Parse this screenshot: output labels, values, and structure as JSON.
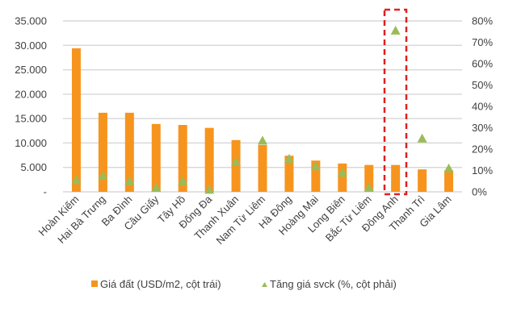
{
  "chart_data": {
    "type": "bar",
    "categories": [
      "Hoàn Kiếm",
      "Hai Bà Trưng",
      "Ba Đình",
      "Cầu Giấy",
      "Tây Hồ",
      "Đống Đa",
      "Thanh Xuân",
      "Nam Từ Liêm",
      "Hà Đông",
      "Hoàng Mai",
      "Long Biên",
      "Bắc Từ Liêm",
      "Đông Anh",
      "Thanh Trì",
      "Gia Lâm"
    ],
    "series": [
      {
        "name": "Giá đất (USD/m2, cột trái)",
        "type": "bar",
        "axis": "left",
        "color": "#F7941D",
        "values": [
          29400,
          16200,
          16200,
          13900,
          13700,
          13100,
          10600,
          9600,
          7400,
          6400,
          5800,
          5500,
          5500,
          4600,
          4400
        ]
      },
      {
        "name": "Tăng giá svck (%, cột phải)",
        "type": "scatter",
        "marker": "triangle",
        "axis": "right",
        "color": "#9BBB59",
        "values": [
          5.5,
          7.5,
          5,
          2,
          5,
          1,
          14,
          24,
          15.5,
          12,
          9,
          2,
          75.5,
          25,
          11
        ]
      }
    ],
    "left_axis": {
      "ylim": [
        0,
        35000
      ],
      "ticks": [
        "-",
        "5.000",
        "10.000",
        "15.000",
        "20.000",
        "25.000",
        "30.000",
        "35.000"
      ]
    },
    "right_axis": {
      "ylim": [
        0,
        80
      ],
      "ticks": [
        "0%",
        "10%",
        "20%",
        "30%",
        "40%",
        "50%",
        "60%",
        "70%",
        "80%"
      ]
    },
    "grid": true,
    "legend": "bottom",
    "highlight": {
      "category": "Đông Anh",
      "style": "red dashed box",
      "color": "#E02020"
    }
  }
}
